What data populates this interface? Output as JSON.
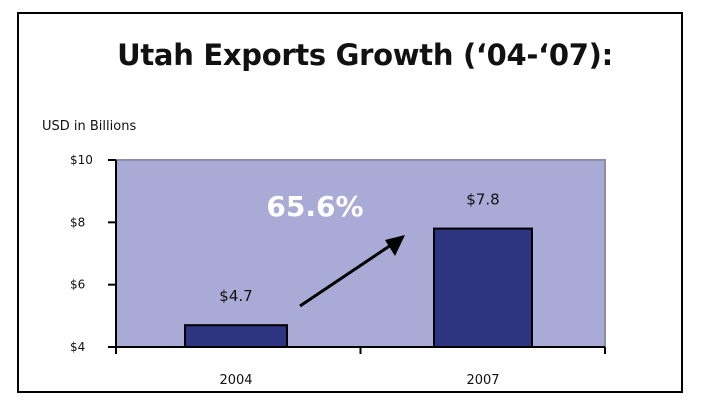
{
  "chart_data": {
    "type": "bar",
    "title": "Utah Exports Growth (‘04-‘07):",
    "ylabel": "USD in Billions",
    "xlabel": "",
    "categories": [
      "2004",
      "2007"
    ],
    "values": [
      4.7,
      7.8
    ],
    "data_labels": [
      "$4.7",
      "$7.8"
    ],
    "ylim": [
      4,
      10
    ],
    "yticks": [
      4,
      6,
      8,
      10
    ],
    "ytick_labels": [
      "$4",
      "$6",
      "$8",
      "$10"
    ],
    "annotation": "65.6%",
    "colors": {
      "plot_area": "#aaaad6",
      "bar": "#2d3480",
      "bar_edge": "#000000",
      "annotation_text": "#ffffff"
    }
  }
}
